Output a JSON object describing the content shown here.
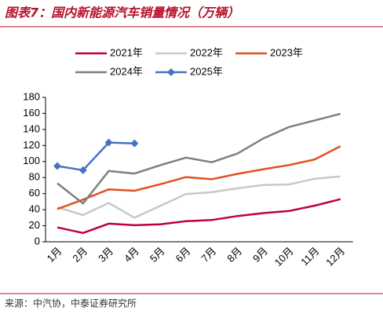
{
  "chart_data": {
    "type": "line",
    "title": "图表7：国内新能源汽车销量情况（万辆）",
    "source": "来源：中汽协，中泰证券研究所",
    "categories": [
      "1月",
      "2月",
      "3月",
      "4月",
      "5月",
      "6月",
      "7月",
      "8月",
      "9月",
      "10月",
      "11月",
      "12月"
    ],
    "ylim": [
      0,
      180
    ],
    "yticks": [
      0,
      20,
      40,
      60,
      80,
      100,
      120,
      140,
      160,
      180
    ],
    "series": [
      {
        "name": "2021年",
        "color": "#c0003c",
        "values": [
          17.9,
          11.0,
          22.6,
          20.6,
          21.7,
          25.6,
          27.1,
          32.1,
          35.7,
          38.3,
          45.0,
          53.1
        ]
      },
      {
        "name": "2022年",
        "color": "#c8c8c8",
        "values": [
          43.1,
          33.4,
          48.4,
          29.9,
          44.7,
          59.6,
          61.7,
          66.6,
          70.8,
          71.4,
          78.6,
          81.4
        ]
      },
      {
        "name": "2023年",
        "color": "#e2501e",
        "values": [
          40.8,
          52.5,
          65.3,
          63.6,
          71.7,
          80.6,
          78.0,
          84.6,
          90.4,
          95.6,
          102.6,
          119.1
        ]
      },
      {
        "name": "2024年",
        "color": "#7f7f7f",
        "values": [
          72.9,
          47.7,
          88.3,
          85.0,
          95.5,
          104.9,
          99.1,
          110.0,
          128.7,
          143.0,
          151.2,
          159.6
        ]
      },
      {
        "name": "2025年",
        "color": "#4472c4",
        "marker": "diamond",
        "values": [
          94.4,
          89.2,
          123.7,
          122.6,
          null,
          null,
          null,
          null,
          null,
          null,
          null,
          null
        ]
      }
    ]
  }
}
